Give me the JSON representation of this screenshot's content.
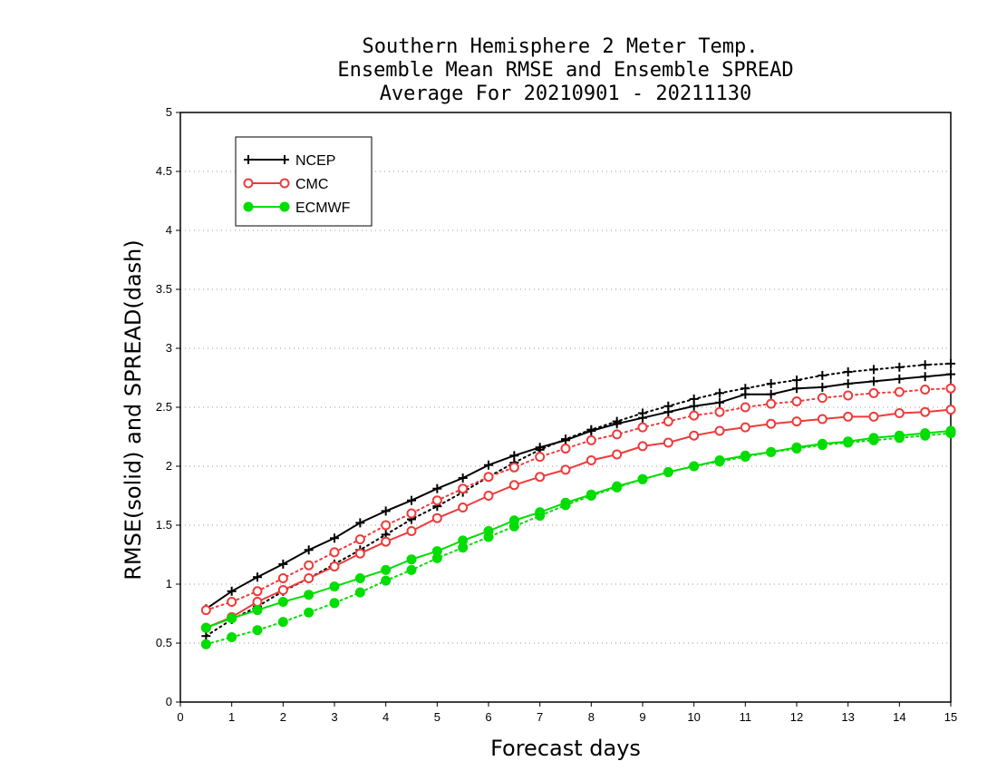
{
  "chart_data": {
    "type": "line",
    "title_lines": [
      "Southern Hemisphere 2 Meter Temp.",
      "Ensemble Mean RMSE and Ensemble SPREAD",
      "Average For 20210901 - 20211130"
    ],
    "xlabel": "Forecast days",
    "ylabel": "RMSE(solid) and SPREAD(dash)",
    "xlim": [
      0,
      15
    ],
    "ylim": [
      0,
      5
    ],
    "x_ticks": [
      "0",
      "1",
      "2",
      "3",
      "4",
      "5",
      "6",
      "7",
      "8",
      "9",
      "10",
      "11",
      "12",
      "13",
      "14",
      "15"
    ],
    "y_ticks": [
      "0",
      "0.5",
      "1",
      "1.5",
      "2",
      "2.5",
      "3",
      "3.5",
      "4",
      "4.5",
      "5"
    ],
    "grid": "horizontal dotted",
    "legend_position": "top-left",
    "x": [
      0.5,
      1,
      1.5,
      2,
      2.5,
      3,
      3.5,
      4,
      4.5,
      5,
      5.5,
      6,
      6.5,
      7,
      7.5,
      8,
      8.5,
      9,
      9.5,
      10,
      10.5,
      11,
      11.5,
      12,
      12.5,
      13,
      13.5,
      14,
      14.5,
      15
    ],
    "series": [
      {
        "name": "NCEP",
        "color": "#000000",
        "marker": "plus",
        "rmse": [
          0.79,
          0.94,
          1.06,
          1.17,
          1.29,
          1.39,
          1.52,
          1.62,
          1.71,
          1.81,
          1.9,
          2.01,
          2.09,
          2.16,
          2.22,
          2.3,
          2.36,
          2.41,
          2.46,
          2.51,
          2.54,
          2.61,
          2.61,
          2.66,
          2.67,
          2.7,
          2.72,
          2.74,
          2.76,
          2.78
        ],
        "spread": [
          0.56,
          0.7,
          0.81,
          0.94,
          1.05,
          1.17,
          1.29,
          1.42,
          1.55,
          1.66,
          1.78,
          1.91,
          2.03,
          2.14,
          2.23,
          2.31,
          2.38,
          2.45,
          2.51,
          2.57,
          2.62,
          2.66,
          2.7,
          2.73,
          2.77,
          2.8,
          2.82,
          2.84,
          2.86,
          2.87
        ]
      },
      {
        "name": "CMC",
        "color": "#ee3b3b",
        "marker": "open-circle",
        "rmse": [
          0.63,
          0.72,
          0.85,
          0.95,
          1.05,
          1.15,
          1.26,
          1.36,
          1.45,
          1.56,
          1.65,
          1.75,
          1.84,
          1.91,
          1.97,
          2.05,
          2.1,
          2.17,
          2.2,
          2.26,
          2.3,
          2.33,
          2.36,
          2.38,
          2.4,
          2.42,
          2.42,
          2.45,
          2.46,
          2.48
        ],
        "spread": [
          0.78,
          0.85,
          0.94,
          1.05,
          1.16,
          1.27,
          1.38,
          1.5,
          1.6,
          1.71,
          1.81,
          1.91,
          1.99,
          2.08,
          2.15,
          2.22,
          2.27,
          2.33,
          2.38,
          2.43,
          2.46,
          2.5,
          2.53,
          2.55,
          2.58,
          2.6,
          2.62,
          2.63,
          2.65,
          2.66
        ]
      },
      {
        "name": "ECMWF",
        "color": "#00dd00",
        "marker": "filled-circle",
        "rmse": [
          0.63,
          0.71,
          0.78,
          0.85,
          0.91,
          0.98,
          1.05,
          1.12,
          1.21,
          1.28,
          1.37,
          1.45,
          1.54,
          1.61,
          1.69,
          1.76,
          1.83,
          1.89,
          1.95,
          2.0,
          2.05,
          2.09,
          2.12,
          2.16,
          2.19,
          2.21,
          2.24,
          2.26,
          2.28,
          2.3
        ],
        "spread": [
          0.49,
          0.55,
          0.61,
          0.68,
          0.76,
          0.84,
          0.93,
          1.03,
          1.12,
          1.22,
          1.31,
          1.4,
          1.49,
          1.58,
          1.67,
          1.75,
          1.82,
          1.89,
          1.95,
          2.0,
          2.04,
          2.08,
          2.12,
          2.15,
          2.18,
          2.2,
          2.22,
          2.24,
          2.26,
          2.28
        ]
      }
    ]
  }
}
